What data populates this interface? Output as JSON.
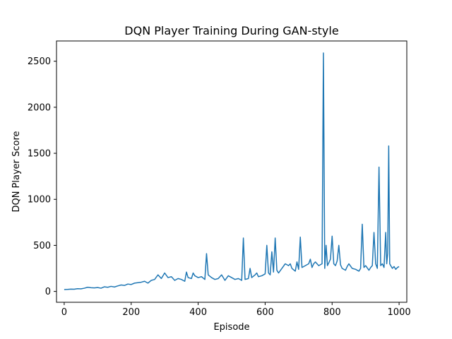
{
  "chart_data": {
    "type": "line",
    "title": "DQN Player Training During GAN-style",
    "xlabel": "Episode",
    "ylabel": "DQN Player Score",
    "xlim": [
      -23,
      1023
    ],
    "ylim": [
      -118,
      2720
    ],
    "xticks": [
      0,
      200,
      400,
      600,
      800,
      1000
    ],
    "yticks": [
      0,
      500,
      1000,
      1500,
      2000,
      2500
    ],
    "grid": false,
    "legend": "none",
    "series": [
      {
        "color": "#1f77b4",
        "x": [
          0,
          10,
          20,
          30,
          40,
          50,
          60,
          70,
          80,
          90,
          100,
          110,
          120,
          130,
          140,
          150,
          160,
          170,
          180,
          190,
          200,
          210,
          220,
          230,
          240,
          250,
          260,
          270,
          280,
          290,
          300,
          310,
          320,
          330,
          340,
          350,
          360,
          365,
          370,
          380,
          385,
          390,
          400,
          410,
          420,
          425,
          430,
          440,
          450,
          460,
          470,
          480,
          490,
          500,
          510,
          520,
          530,
          535,
          540,
          550,
          555,
          560,
          570,
          575,
          580,
          590,
          600,
          605,
          610,
          615,
          620,
          625,
          630,
          635,
          640,
          650,
          660,
          670,
          675,
          680,
          690,
          695,
          700,
          705,
          710,
          720,
          730,
          735,
          740,
          745,
          750,
          760,
          770,
          774,
          778,
          782,
          786,
          790,
          795,
          800,
          805,
          810,
          815,
          820,
          825,
          830,
          840,
          845,
          850,
          860,
          870,
          880,
          885,
          890,
          895,
          900,
          910,
          915,
          920,
          925,
          930,
          935,
          940,
          945,
          950,
          955,
          960,
          963,
          966,
          969,
          972,
          975,
          980,
          985,
          990,
          995,
          1000
        ],
        "y": [
          20,
          22,
          25,
          24,
          30,
          28,
          35,
          45,
          40,
          38,
          42,
          35,
          50,
          45,
          55,
          48,
          60,
          70,
          65,
          80,
          75,
          90,
          95,
          100,
          110,
          90,
          120,
          130,
          180,
          140,
          200,
          150,
          160,
          120,
          140,
          130,
          110,
          210,
          150,
          140,
          200,
          170,
          150,
          160,
          130,
          410,
          180,
          150,
          130,
          140,
          180,
          120,
          170,
          150,
          130,
          140,
          120,
          580,
          130,
          140,
          250,
          150,
          180,
          200,
          160,
          170,
          190,
          500,
          200,
          180,
          430,
          210,
          580,
          230,
          200,
          250,
          300,
          280,
          300,
          250,
          220,
          320,
          240,
          590,
          260,
          280,
          300,
          350,
          260,
          300,
          320,
          280,
          300,
          2590,
          250,
          500,
          280,
          310,
          350,
          600,
          300,
          280,
          330,
          500,
          290,
          250,
          230,
          270,
          300,
          250,
          240,
          220,
          250,
          730,
          260,
          280,
          230,
          260,
          280,
          640,
          300,
          250,
          1350,
          280,
          300,
          260,
          640,
          300,
          410,
          1580,
          300,
          280,
          250,
          270,
          240,
          260,
          270
        ]
      }
    ]
  }
}
